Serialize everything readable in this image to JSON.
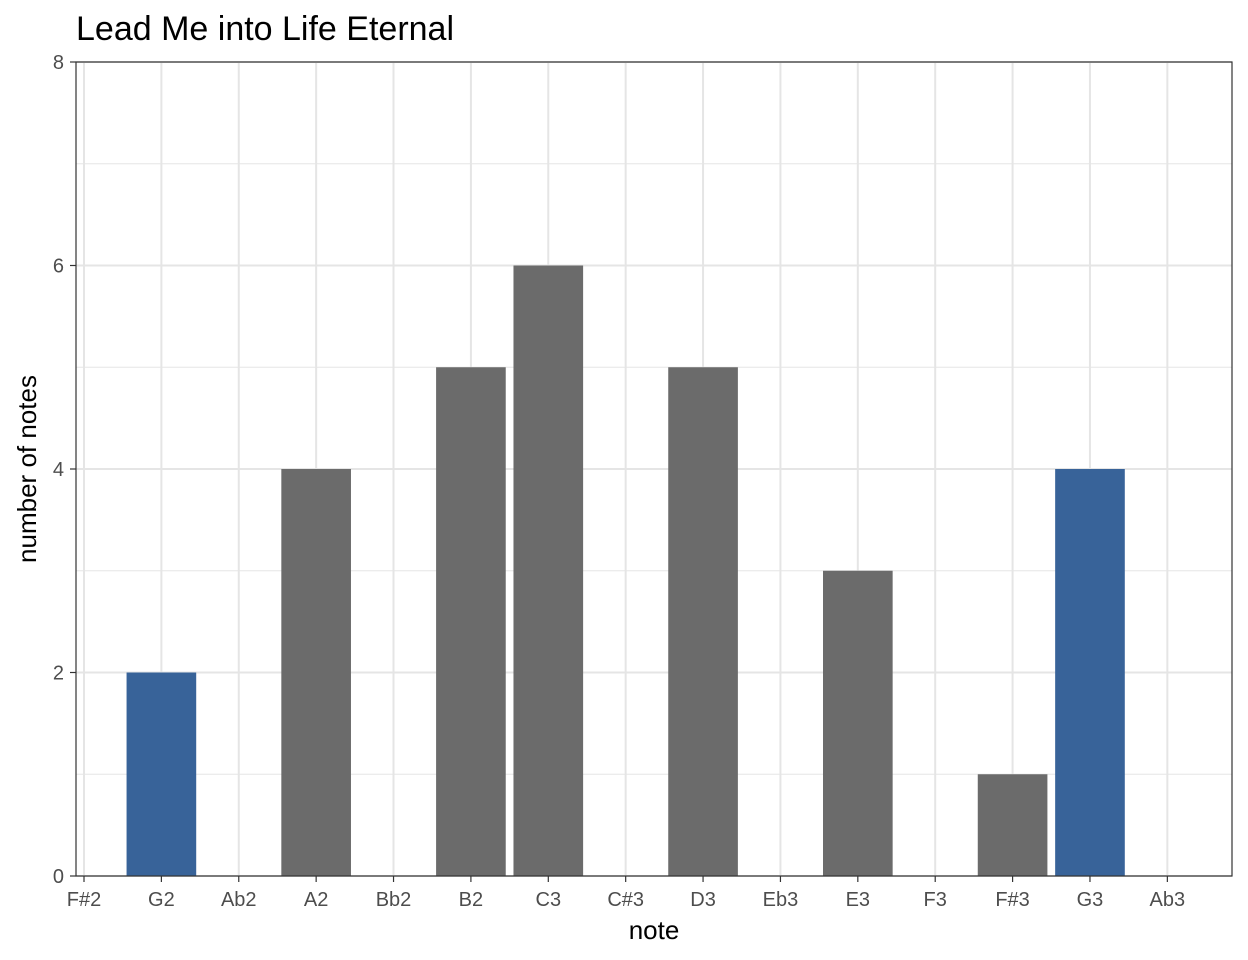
{
  "chart_data": {
    "type": "bar",
    "title": "Lead Me into Life Eternal",
    "xlabel": "note",
    "ylabel": "number of notes",
    "categories": [
      "F#2",
      "G2",
      "Ab2",
      "A2",
      "Bb2",
      "B2",
      "C3",
      "C#3",
      "D3",
      "Eb3",
      "E3",
      "F3",
      "F#3",
      "G3",
      "Ab3"
    ],
    "values": [
      0,
      2,
      0,
      4,
      0,
      5,
      6,
      0,
      5,
      0,
      3,
      0,
      1,
      4,
      0
    ],
    "highlighted": [
      false,
      true,
      false,
      false,
      false,
      false,
      false,
      false,
      false,
      false,
      false,
      false,
      false,
      true,
      false
    ],
    "ylim": [
      0,
      8
    ],
    "yticks": [
      0,
      2,
      4,
      6,
      8
    ],
    "grid": true,
    "colors": {
      "default": "#6b6b6b",
      "highlight": "#386399",
      "grid": "#e5e5e5",
      "border": "#333333"
    }
  }
}
